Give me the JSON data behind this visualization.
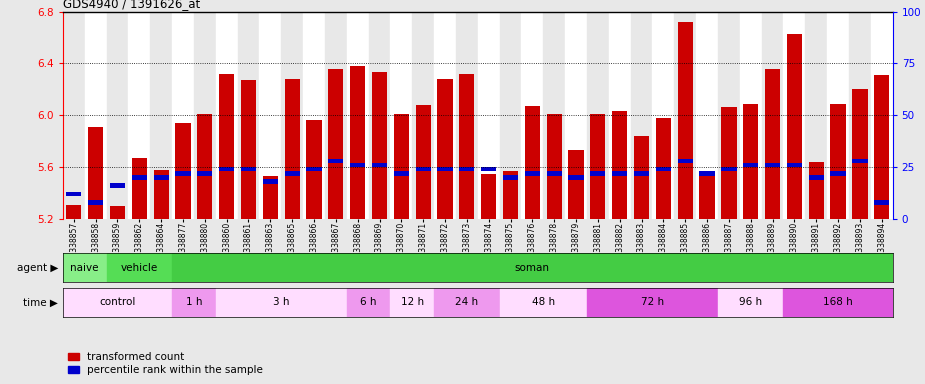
{
  "title": "GDS4940 / 1391626_at",
  "samples": [
    "GSM338857",
    "GSM338858",
    "GSM338859",
    "GSM338862",
    "GSM338864",
    "GSM338877",
    "GSM338880",
    "GSM338860",
    "GSM338861",
    "GSM338863",
    "GSM338865",
    "GSM338866",
    "GSM338867",
    "GSM338868",
    "GSM338869",
    "GSM338870",
    "GSM338871",
    "GSM338872",
    "GSM338873",
    "GSM338874",
    "GSM338875",
    "GSM338876",
    "GSM338878",
    "GSM338879",
    "GSM338881",
    "GSM338882",
    "GSM338883",
    "GSM338884",
    "GSM338885",
    "GSM338886",
    "GSM338887",
    "GSM338888",
    "GSM338889",
    "GSM338890",
    "GSM338891",
    "GSM338892",
    "GSM338893",
    "GSM338894"
  ],
  "transformed_count": [
    5.31,
    5.91,
    5.3,
    5.67,
    5.58,
    5.94,
    6.01,
    6.32,
    6.27,
    5.53,
    6.28,
    5.96,
    6.36,
    6.38,
    6.33,
    6.01,
    6.08,
    6.28,
    6.32,
    5.55,
    5.57,
    6.07,
    6.01,
    5.73,
    6.01,
    6.03,
    5.84,
    5.98,
    6.72,
    5.56,
    6.06,
    6.09,
    6.36,
    6.63,
    5.64,
    6.09,
    6.2,
    6.31
  ],
  "percentile_rank": [
    12,
    8,
    16,
    20,
    20,
    22,
    22,
    24,
    24,
    18,
    22,
    24,
    28,
    26,
    26,
    22,
    24,
    24,
    24,
    24,
    20,
    22,
    22,
    20,
    22,
    22,
    22,
    24,
    28,
    22,
    24,
    26,
    26,
    26,
    20,
    22,
    28,
    8
  ],
  "bar_color": "#cc0000",
  "percentile_color": "#0000cc",
  "ylim_left": [
    5.2,
    6.8
  ],
  "ylim_right": [
    0,
    100
  ],
  "yticks_left": [
    5.2,
    5.6,
    6.0,
    6.4,
    6.8
  ],
  "yticks_right": [
    0,
    25,
    50,
    75,
    100
  ],
  "grid_yticks": [
    5.6,
    6.0,
    6.4
  ],
  "agent_groups": [
    {
      "label": "naive",
      "start": 0,
      "end": 2,
      "color": "#88ee88"
    },
    {
      "label": "vehicle",
      "start": 2,
      "end": 5,
      "color": "#55dd55"
    },
    {
      "label": "soman",
      "start": 5,
      "end": 38,
      "color": "#44cc44"
    }
  ],
  "time_groups": [
    {
      "label": "control",
      "start": 0,
      "end": 5,
      "color": "#ffddff"
    },
    {
      "label": "1 h",
      "start": 5,
      "end": 7,
      "color": "#ee99ee"
    },
    {
      "label": "3 h",
      "start": 7,
      "end": 13,
      "color": "#ffddff"
    },
    {
      "label": "6 h",
      "start": 13,
      "end": 15,
      "color": "#ee99ee"
    },
    {
      "label": "12 h",
      "start": 15,
      "end": 17,
      "color": "#ffddff"
    },
    {
      "label": "24 h",
      "start": 17,
      "end": 20,
      "color": "#ee99ee"
    },
    {
      "label": "48 h",
      "start": 20,
      "end": 24,
      "color": "#ffddff"
    },
    {
      "label": "72 h",
      "start": 24,
      "end": 30,
      "color": "#dd55dd"
    },
    {
      "label": "96 h",
      "start": 30,
      "end": 33,
      "color": "#ffddff"
    },
    {
      "label": "168 h",
      "start": 33,
      "end": 38,
      "color": "#dd55dd"
    }
  ],
  "legend_red_label": "transformed count",
  "legend_blue_label": "percentile rank within the sample",
  "background_color": "#e8e8e8",
  "plot_bg_color": "#ffffff",
  "col_bg_even": "#e8e8e8",
  "col_bg_odd": "#ffffff"
}
